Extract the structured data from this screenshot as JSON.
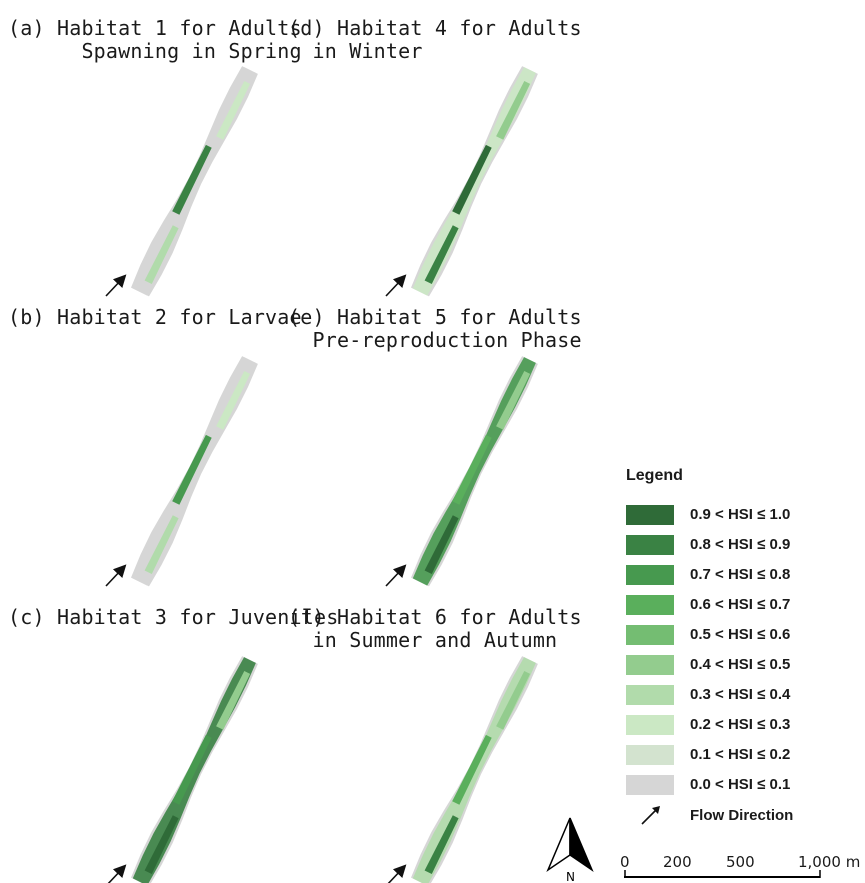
{
  "panels": [
    {
      "title": "(a) Habitat 1 for Adults\n      Spawning in Spring"
    },
    {
      "title": "(b) Habitat 2 for Larvae"
    },
    {
      "title": "(c) Habitat 3 for Juveniles"
    },
    {
      "title": "(d) Habitat 4 for Adults\n  in Winter"
    },
    {
      "title": "(e) Habitat 5 for Adults\n  Pre-reproduction Phase"
    },
    {
      "title": "(f) Habitat 6 for Adults\n  in Summer and Autumn"
    }
  ],
  "legend": {
    "title": "Legend",
    "classes": [
      {
        "label": "0.9 < HSI ≤ 1.0",
        "color": "#2f6b38"
      },
      {
        "label": "0.8 < HSI ≤ 0.9",
        "color": "#3a8244"
      },
      {
        "label": "0.7 < HSI ≤ 0.8",
        "color": "#47994f"
      },
      {
        "label": "0.6 < HSI ≤ 0.7",
        "color": "#5aaf5c"
      },
      {
        "label": "0.5 < HSI ≤ 0.6",
        "color": "#74bd72"
      },
      {
        "label": "0.4 < HSI ≤ 0.5",
        "color": "#93cc8e"
      },
      {
        "label": "0.3 < HSI ≤ 0.4",
        "color": "#b1dbab"
      },
      {
        "label": "0.2 < HSI ≤ 0.3",
        "color": "#cbe8c4"
      },
      {
        "label": "0.1 < HSI ≤ 0.2",
        "color": "#d3e3cf"
      },
      {
        "label": "0.0 < HSI ≤ 0.1",
        "color": "#d6d6d6"
      }
    ],
    "flow_label": "Flow Direction"
  },
  "north_arrow": {
    "label": "N"
  },
  "scale_bar": {
    "ticks": [
      "0",
      "200",
      "500",
      "1,000 m"
    ]
  },
  "panel_habitat_levels": [
    {
      "dominant": 0.05,
      "patches": [
        0.35,
        0.85,
        0.25
      ]
    },
    {
      "dominant": 0.05,
      "patches": [
        0.35,
        0.75,
        0.25
      ]
    },
    {
      "dominant": 0.85,
      "patches": [
        0.95,
        0.75,
        0.45
      ]
    },
    {
      "dominant": 0.25,
      "patches": [
        0.85,
        0.95,
        0.45
      ]
    },
    {
      "dominant": 0.75,
      "patches": [
        0.95,
        0.65,
        0.45
      ]
    },
    {
      "dominant": 0.35,
      "patches": [
        0.85,
        0.65,
        0.45
      ]
    }
  ]
}
